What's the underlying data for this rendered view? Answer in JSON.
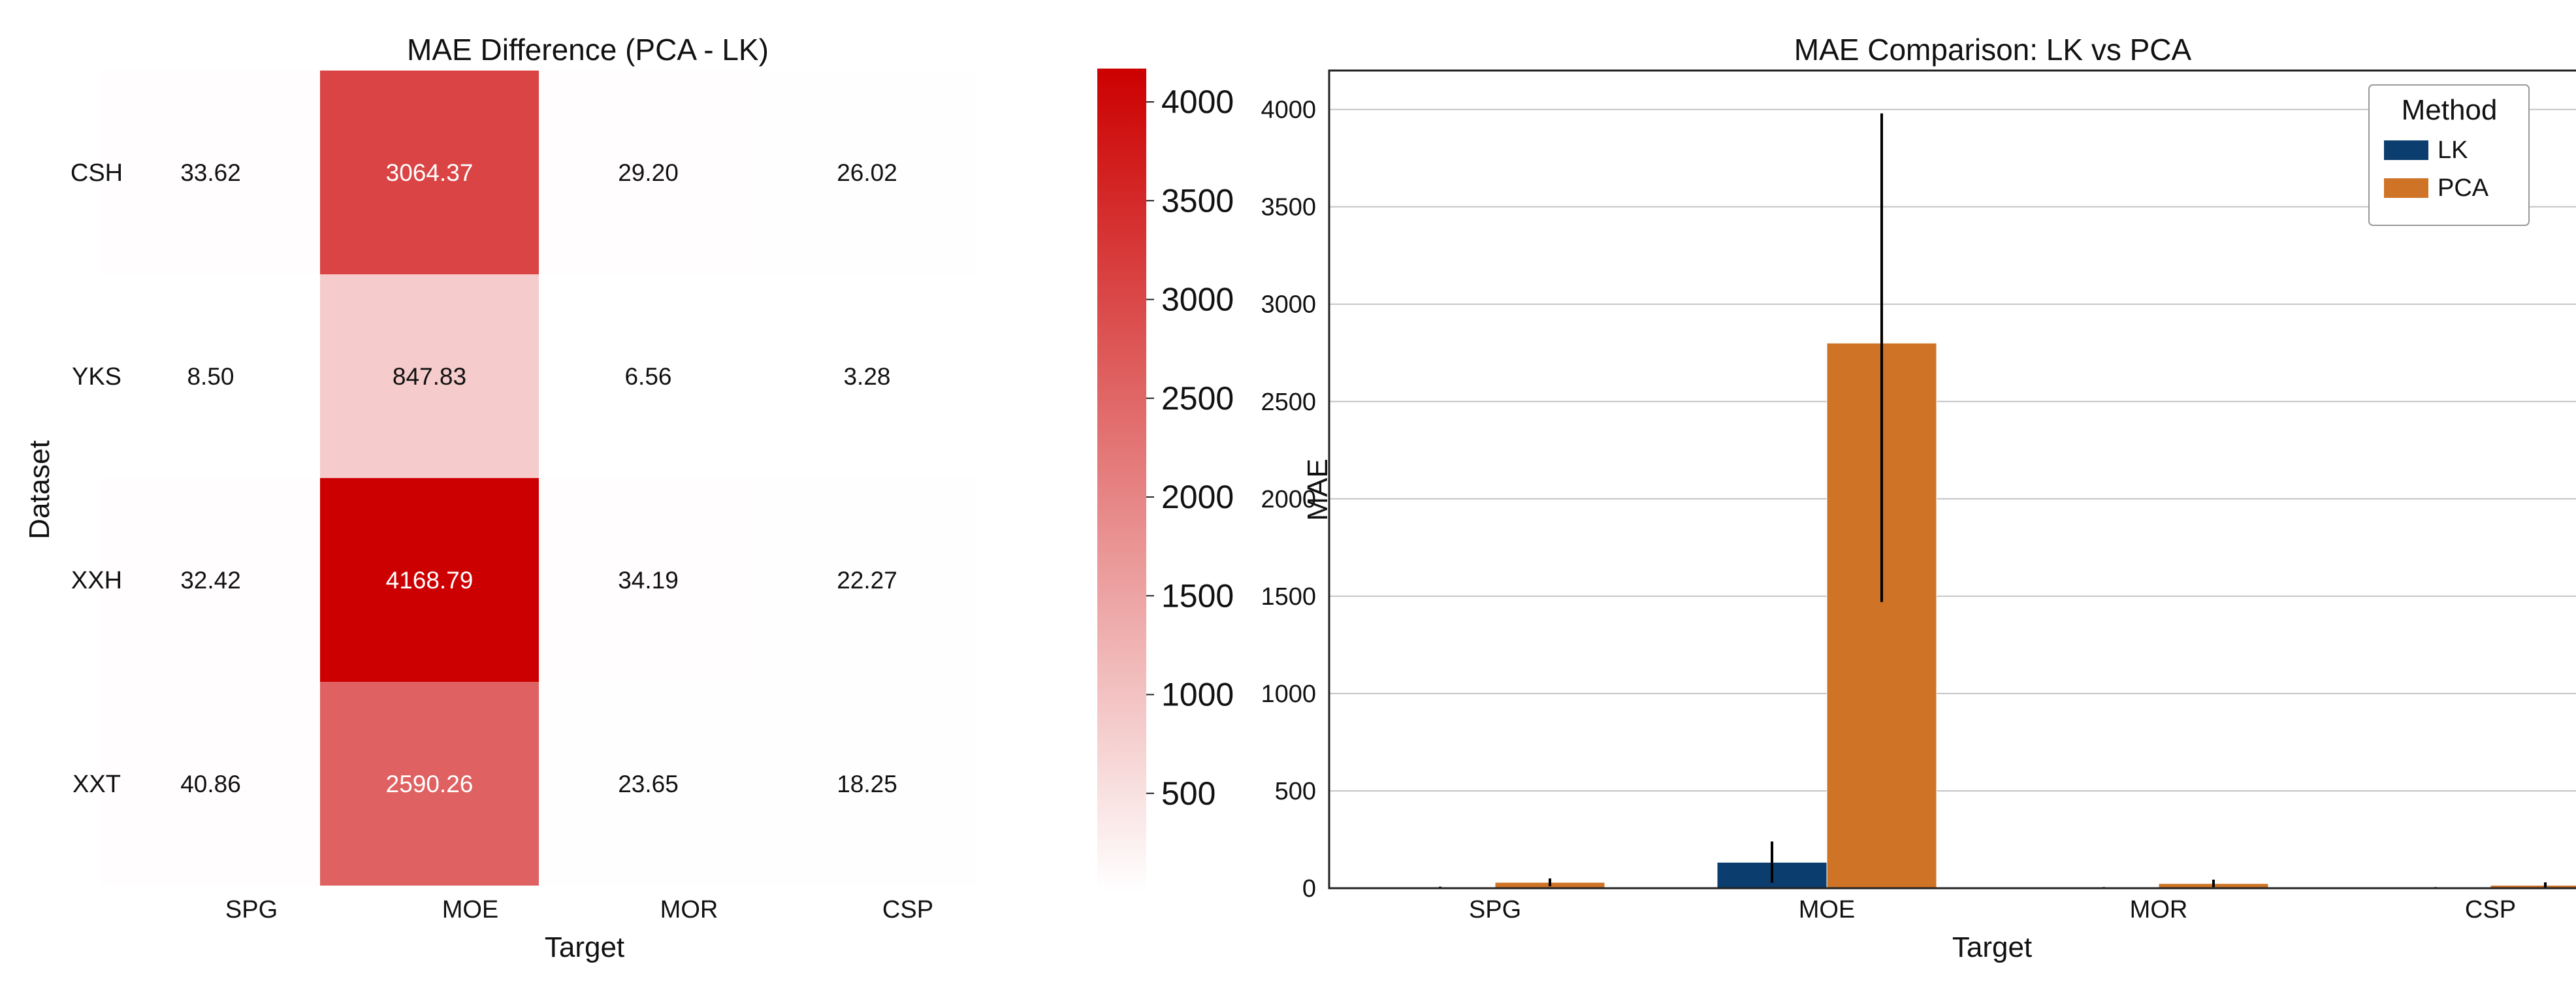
{
  "chart_data": [
    {
      "type": "heatmap",
      "title": "MAE Difference (PCA - LK)",
      "xlabel": "Target",
      "ylabel": "Dataset",
      "columns": [
        "SPG",
        "MOE",
        "MOR",
        "CSP"
      ],
      "rows": [
        "CSH",
        "YKS",
        "XXH",
        "XXT"
      ],
      "values": [
        [
          "33.62",
          "3064.37",
          "29.20",
          "26.02"
        ],
        [
          "8.50",
          "847.83",
          "6.56",
          "3.28"
        ],
        [
          "32.42",
          "4168.79",
          "34.19",
          "22.27"
        ],
        [
          "40.86",
          "2590.26",
          "23.65",
          "18.25"
        ]
      ],
      "colorbar": {
        "min": 3.28,
        "max": 4168.79,
        "ticks": [
          "500",
          "1000",
          "1500",
          "2000",
          "2500",
          "3000",
          "3500",
          "4000"
        ],
        "color_low": "#ffffff",
        "color_high": "#cc0000"
      }
    },
    {
      "type": "bar",
      "title": "MAE Comparison: LK vs PCA",
      "xlabel": "Target",
      "ylabel": "MAE",
      "categories": [
        "SPG",
        "MOE",
        "MOR",
        "CSP"
      ],
      "ylim": [
        0,
        4200
      ],
      "yticks": [
        "0",
        "500",
        "1000",
        "1500",
        "2000",
        "2500",
        "3000",
        "3500",
        "4000"
      ],
      "grid": true,
      "legend": {
        "title": "Method",
        "position": "top-right"
      },
      "series": [
        {
          "name": "LK",
          "color": "#0b3d6e",
          "values": [
            2,
            133,
            2,
            2
          ],
          "err_low": [
            0,
            28,
            0,
            0
          ],
          "err_high": [
            8,
            240,
            6,
            6
          ]
        },
        {
          "name": "PCA",
          "color": "#cf7326",
          "values": [
            30,
            2800,
            24,
            15
          ],
          "err_low": [
            10,
            1470,
            6,
            4
          ],
          "err_high": [
            50,
            3980,
            44,
            30
          ]
        }
      ]
    }
  ]
}
